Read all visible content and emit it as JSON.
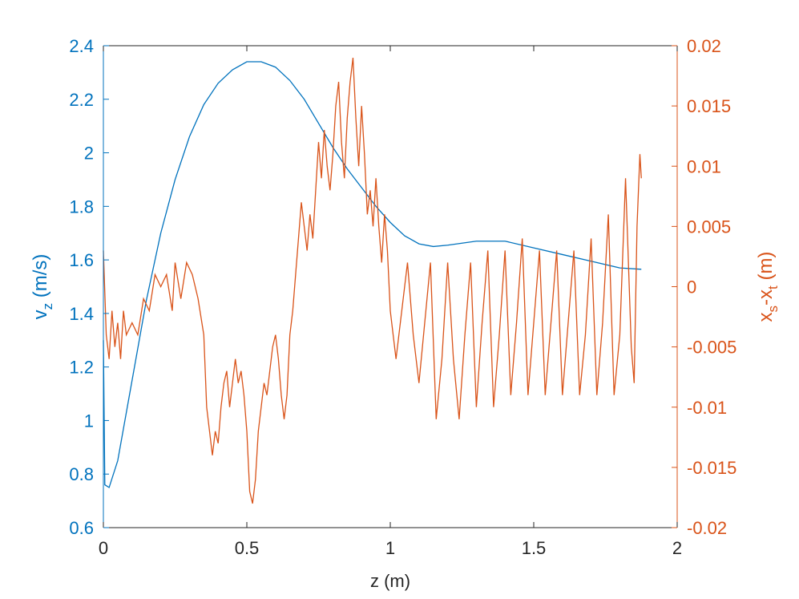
{
  "chart_data": {
    "type": "line",
    "xlabel": "z (m)",
    "ylabel": [
      "v",
      "z",
      " (m/s)"
    ],
    "y2label": [
      "x",
      "s",
      "-x",
      "t",
      " (m)"
    ],
    "xlim": [
      0,
      2
    ],
    "xticks": [
      0,
      0.5,
      1,
      1.5,
      2
    ],
    "ylim": [
      0.6,
      2.4
    ],
    "yticks": [
      0.6,
      0.8,
      1,
      1.2,
      1.4,
      1.6,
      1.8,
      2,
      2.2,
      2.4
    ],
    "y2lim": [
      -0.02,
      0.02
    ],
    "y2ticks": [
      -0.02,
      -0.015,
      -0.01,
      -0.005,
      0,
      0.005,
      0.01,
      0.015,
      0.02
    ],
    "ycolor": "#0072bd",
    "y2color": "#d95319",
    "series": [
      {
        "color": "#0072bd",
        "axis": "y",
        "x": [
          0,
          0.005,
          0.02,
          0.05,
          0.1,
          0.15,
          0.2,
          0.25,
          0.3,
          0.35,
          0.4,
          0.45,
          0.5,
          0.55,
          0.6,
          0.65,
          0.7,
          0.75,
          0.8,
          0.85,
          0.9,
          0.95,
          1.0,
          1.05,
          1.1,
          1.15,
          1.2,
          1.3,
          1.4,
          1.5,
          1.6,
          1.7,
          1.8,
          1.875
        ],
        "values": [
          1.3,
          0.76,
          0.75,
          0.85,
          1.15,
          1.45,
          1.7,
          1.9,
          2.06,
          2.18,
          2.26,
          2.31,
          2.34,
          2.34,
          2.32,
          2.27,
          2.2,
          2.11,
          2.02,
          1.94,
          1.87,
          1.8,
          1.74,
          1.69,
          1.66,
          1.65,
          1.655,
          1.67,
          1.67,
          1.645,
          1.62,
          1.595,
          1.57,
          1.565
        ]
      },
      {
        "color": "#d95319",
        "axis": "y2",
        "x": [
          0,
          0.01,
          0.02,
          0.03,
          0.04,
          0.05,
          0.06,
          0.07,
          0.08,
          0.1,
          0.12,
          0.14,
          0.16,
          0.18,
          0.2,
          0.22,
          0.24,
          0.25,
          0.27,
          0.29,
          0.31,
          0.33,
          0.35,
          0.36,
          0.37,
          0.38,
          0.39,
          0.4,
          0.41,
          0.42,
          0.43,
          0.44,
          0.45,
          0.46,
          0.47,
          0.48,
          0.49,
          0.5,
          0.51,
          0.52,
          0.53,
          0.54,
          0.55,
          0.56,
          0.57,
          0.58,
          0.59,
          0.6,
          0.61,
          0.62,
          0.63,
          0.64,
          0.65,
          0.66,
          0.67,
          0.68,
          0.69,
          0.7,
          0.71,
          0.72,
          0.73,
          0.74,
          0.75,
          0.76,
          0.77,
          0.78,
          0.79,
          0.8,
          0.81,
          0.82,
          0.83,
          0.84,
          0.85,
          0.86,
          0.87,
          0.88,
          0.89,
          0.9,
          0.91,
          0.92,
          0.93,
          0.94,
          0.95,
          0.96,
          0.97,
          0.98,
          0.99,
          1.0,
          1.02,
          1.04,
          1.06,
          1.08,
          1.1,
          1.12,
          1.14,
          1.16,
          1.18,
          1.2,
          1.22,
          1.24,
          1.26,
          1.28,
          1.3,
          1.32,
          1.34,
          1.36,
          1.38,
          1.4,
          1.42,
          1.44,
          1.46,
          1.48,
          1.5,
          1.52,
          1.54,
          1.56,
          1.58,
          1.6,
          1.62,
          1.64,
          1.66,
          1.68,
          1.7,
          1.72,
          1.74,
          1.76,
          1.78,
          1.8,
          1.82,
          1.84,
          1.85,
          1.86,
          1.87,
          1.875
        ],
        "values": [
          0.003,
          -0.004,
          -0.006,
          -0.002,
          -0.005,
          -0.003,
          -0.006,
          -0.002,
          -0.004,
          -0.003,
          -0.004,
          -0.001,
          -0.002,
          0.001,
          0,
          0.001,
          -0.002,
          0.002,
          -0.001,
          0.002,
          0.001,
          -0.001,
          -0.004,
          -0.01,
          -0.012,
          -0.014,
          -0.012,
          -0.013,
          -0.01,
          -0.008,
          -0.007,
          -0.01,
          -0.008,
          -0.006,
          -0.008,
          -0.007,
          -0.009,
          -0.012,
          -0.017,
          -0.018,
          -0.016,
          -0.012,
          -0.01,
          -0.008,
          -0.009,
          -0.007,
          -0.005,
          -0.004,
          -0.006,
          -0.009,
          -0.011,
          -0.009,
          -0.004,
          -0.002,
          0.001,
          0.004,
          0.007,
          0.005,
          0.003,
          0.006,
          0.004,
          0.008,
          0.012,
          0.009,
          0.013,
          0.01,
          0.008,
          0.011,
          0.015,
          0.017,
          0.012,
          0.009,
          0.014,
          0.017,
          0.019,
          0.014,
          0.01,
          0.015,
          0.011,
          0.006,
          0.008,
          0.005,
          0.009,
          0.005,
          0.002,
          0.006,
          0.003,
          -0.002,
          -0.006,
          -0.002,
          0.002,
          -0.004,
          -0.008,
          -0.003,
          0.002,
          -0.011,
          -0.006,
          0.002,
          -0.006,
          -0.011,
          -0.004,
          0.002,
          -0.01,
          -0.003,
          0.003,
          -0.01,
          -0.004,
          0.003,
          -0.009,
          -0.003,
          0.004,
          -0.009,
          -0.003,
          0.003,
          -0.009,
          -0.003,
          0.003,
          -0.009,
          -0.003,
          0.003,
          -0.009,
          -0.004,
          0.004,
          -0.009,
          -0.003,
          0.006,
          -0.009,
          -0.004,
          0.009,
          -0.005,
          -0.008,
          0.005,
          0.011,
          0.009
        ]
      }
    ]
  }
}
